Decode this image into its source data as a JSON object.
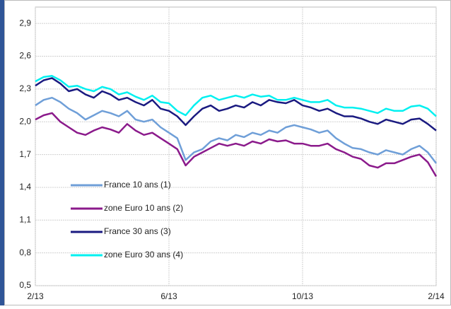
{
  "chart_data": {
    "type": "line",
    "categories": [
      "2/13",
      null,
      null,
      null,
      null,
      null,
      null,
      null,
      null,
      null,
      null,
      null,
      null,
      null,
      null,
      null,
      "6/13",
      null,
      null,
      null,
      null,
      null,
      null,
      null,
      null,
      null,
      null,
      null,
      null,
      null,
      null,
      null,
      "10/13",
      null,
      null,
      null,
      null,
      null,
      null,
      null,
      null,
      null,
      null,
      null,
      null,
      null,
      null,
      null,
      "2/14"
    ],
    "series": [
      {
        "name": "France 10 ans (1)",
        "color": "#6f9fd8",
        "values": [
          2.15,
          2.2,
          2.22,
          2.18,
          2.12,
          2.08,
          2.02,
          2.06,
          2.1,
          2.08,
          2.05,
          2.1,
          2.02,
          2.0,
          2.02,
          1.95,
          1.9,
          1.85,
          1.65,
          1.72,
          1.75,
          1.82,
          1.85,
          1.83,
          1.88,
          1.86,
          1.9,
          1.88,
          1.92,
          1.9,
          1.95,
          1.97,
          1.95,
          1.93,
          1.9,
          1.92,
          1.85,
          1.8,
          1.76,
          1.75,
          1.72,
          1.7,
          1.74,
          1.72,
          1.7,
          1.75,
          1.78,
          1.72,
          1.62
        ]
      },
      {
        "name": "zone Euro 10 ans (2)",
        "color": "#8b1a8b",
        "values": [
          2.02,
          2.06,
          2.08,
          2.0,
          1.95,
          1.9,
          1.88,
          1.92,
          1.95,
          1.93,
          1.9,
          1.98,
          1.92,
          1.88,
          1.9,
          1.85,
          1.8,
          1.75,
          1.6,
          1.68,
          1.72,
          1.76,
          1.8,
          1.78,
          1.8,
          1.78,
          1.82,
          1.8,
          1.84,
          1.82,
          1.83,
          1.8,
          1.8,
          1.78,
          1.78,
          1.8,
          1.75,
          1.72,
          1.68,
          1.66,
          1.6,
          1.58,
          1.62,
          1.62,
          1.65,
          1.68,
          1.7,
          1.63,
          1.5
        ]
      },
      {
        "name": "France 30 ans (3)",
        "color": "#1a1a80",
        "values": [
          2.33,
          2.38,
          2.4,
          2.35,
          2.28,
          2.3,
          2.25,
          2.22,
          2.28,
          2.25,
          2.2,
          2.22,
          2.18,
          2.15,
          2.2,
          2.12,
          2.1,
          2.05,
          1.97,
          2.05,
          2.12,
          2.15,
          2.1,
          2.12,
          2.15,
          2.13,
          2.18,
          2.15,
          2.2,
          2.18,
          2.17,
          2.2,
          2.15,
          2.13,
          2.1,
          2.12,
          2.08,
          2.05,
          2.05,
          2.03,
          2.0,
          1.98,
          2.02,
          2.0,
          1.98,
          2.02,
          2.03,
          1.98,
          1.92
        ]
      },
      {
        "name": "zone Euro 30 ans (4)",
        "color": "#00f0f0",
        "values": [
          2.37,
          2.41,
          2.42,
          2.38,
          2.32,
          2.33,
          2.3,
          2.28,
          2.32,
          2.3,
          2.25,
          2.27,
          2.23,
          2.2,
          2.24,
          2.18,
          2.17,
          2.1,
          2.06,
          2.15,
          2.22,
          2.24,
          2.2,
          2.22,
          2.24,
          2.22,
          2.25,
          2.23,
          2.24,
          2.2,
          2.2,
          2.22,
          2.2,
          2.18,
          2.18,
          2.2,
          2.15,
          2.13,
          2.13,
          2.12,
          2.1,
          2.08,
          2.12,
          2.1,
          2.1,
          2.14,
          2.15,
          2.12,
          2.05
        ]
      }
    ],
    "ylim": [
      0.5,
      3.05
    ],
    "yticks": [
      {
        "value": 0.5,
        "label": "0,5"
      },
      {
        "value": 0.8,
        "label": "0,8"
      },
      {
        "value": 1.1,
        "label": "1,1"
      },
      {
        "value": 1.4,
        "label": "1,4"
      },
      {
        "value": 1.7,
        "label": "1,7"
      },
      {
        "value": 2.0,
        "label": "2,0"
      },
      {
        "value": 2.3,
        "label": "2,3"
      },
      {
        "value": 2.6,
        "label": "2,6"
      },
      {
        "value": 2.9,
        "label": "2,9"
      }
    ],
    "grid": true,
    "legend": "lower left"
  }
}
